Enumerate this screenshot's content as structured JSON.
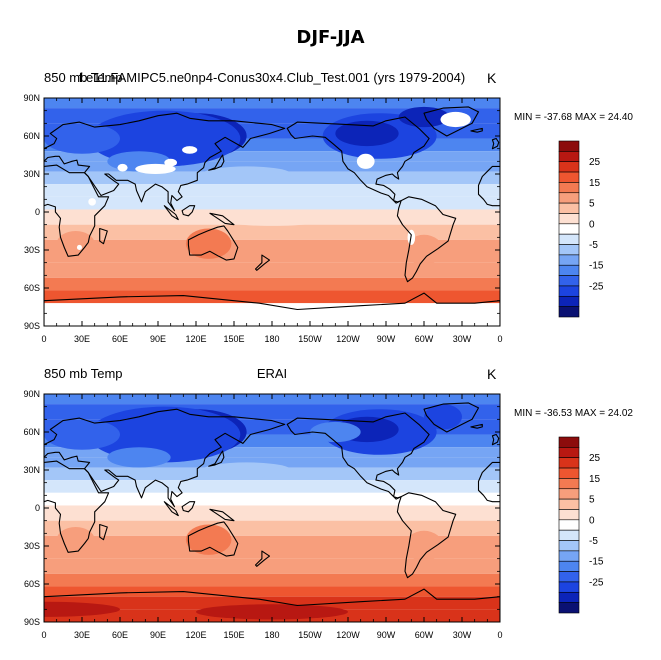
{
  "figure": {
    "title": "DJF-JJA"
  },
  "colors": {
    "bins": [
      "#0a1172",
      "#0c24b8",
      "#1c44e0",
      "#3262eb",
      "#4d85f0",
      "#76a5f4",
      "#a3c6f8",
      "#d4e6fb",
      "#ffffff",
      "#fde0d2",
      "#fbc0a4",
      "#f79e7c",
      "#f37a52",
      "#ee5630",
      "#d9331a",
      "#b81812",
      "#8c0c0c"
    ],
    "land_outline": "#000000",
    "missing": "#ffffff"
  },
  "chart_data": [
    {
      "type": "heatmap",
      "panel": "top",
      "header_left": "850 mb Temp",
      "header_center": "f.e11.FAMIPC5.ne0np4-Conus30x4.Club_Test.001 (yrs 1979-2004)",
      "units": "K",
      "min_max_text": "MIN = -37.68 MAX =  24.40",
      "min": -37.68,
      "max": 24.4,
      "xlim": [
        0,
        360
      ],
      "ylim": [
        -90,
        90
      ],
      "lat_ticks": [
        "90N",
        "60N",
        "30N",
        "0",
        "30S",
        "60S",
        "90S"
      ],
      "lon_ticks": [
        "0",
        "30E",
        "60E",
        "90E",
        "120E",
        "150E",
        "180",
        "150W",
        "120W",
        "90W",
        "60W",
        "30W",
        "0"
      ],
      "colorbar_levels": [
        -35,
        -30,
        -25,
        -20,
        -15,
        -10,
        -5,
        -2.5,
        0,
        2.5,
        5,
        10,
        15,
        20,
        25,
        30
      ],
      "colorbar_labels": [
        "25",
        "15",
        "5",
        "0",
        "-5",
        "-15",
        "-25"
      ]
    },
    {
      "type": "heatmap",
      "panel": "bottom",
      "header_left": "850 mb Temp",
      "header_center": "ERAI",
      "units": "K",
      "min_max_text": "MIN = -36.53 MAX =  24.02",
      "min": -36.53,
      "max": 24.02,
      "xlim": [
        0,
        360
      ],
      "ylim": [
        -90,
        90
      ],
      "lat_ticks": [
        "90N",
        "60N",
        "30N",
        "0",
        "30S",
        "60S",
        "90S"
      ],
      "lon_ticks": [
        "0",
        "30E",
        "60E",
        "90E",
        "120E",
        "150E",
        "180",
        "150W",
        "120W",
        "90W",
        "60W",
        "30W",
        "0"
      ],
      "colorbar_levels": [
        -35,
        -30,
        -25,
        -20,
        -15,
        -10,
        -5,
        -2.5,
        0,
        2.5,
        5,
        10,
        15,
        20,
        25,
        30
      ],
      "colorbar_labels": [
        "25",
        "15",
        "5",
        "0",
        "-5",
        "-15",
        "-25"
      ]
    }
  ]
}
